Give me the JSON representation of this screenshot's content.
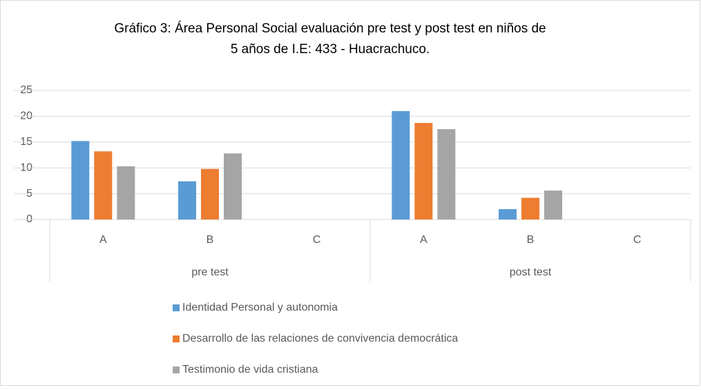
{
  "chart_data": {
    "type": "bar",
    "title_lines": [
      "Gráfico 3: Área Personal Social evaluación pre test y post test en niños de",
      "5 años de I.E: 433 - Huacrachuco."
    ],
    "categories": [
      "A",
      "B",
      "C",
      "A",
      "B",
      "C"
    ],
    "groups": [
      {
        "name": "pre test",
        "size": 3
      },
      {
        "name": "post test",
        "size": 3
      }
    ],
    "series": [
      {
        "name": "Identidad Personal y autonomia",
        "color": "#5b9bd5",
        "values": [
          15.2,
          7.4,
          0,
          21,
          2,
          0
        ]
      },
      {
        "name": "Desarrollo de las relaciones de convivencia democrática",
        "color": "#ed7d31",
        "values": [
          13.2,
          9.8,
          0,
          18.7,
          4.2,
          0
        ]
      },
      {
        "name": "Testimonio de vida cristiana",
        "color": "#a5a5a5",
        "values": [
          10.3,
          12.8,
          0,
          17.5,
          5.6,
          0
        ]
      }
    ],
    "ylim": [
      0,
      25
    ],
    "yticks": [
      0,
      5,
      10,
      15,
      20,
      25
    ],
    "grid": true,
    "legend": "bottom"
  }
}
